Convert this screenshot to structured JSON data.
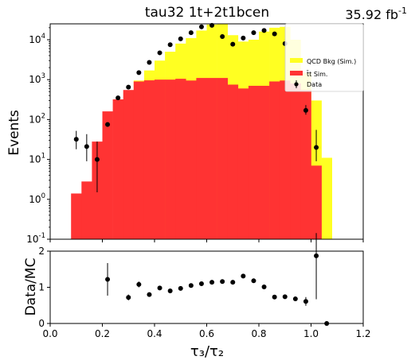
{
  "chart_data": [
    {
      "type": "bar",
      "title": "tau32  1t+2t1bcen",
      "luminosity": "35.92 fb",
      "luminosity_exponent": "-1",
      "ylabel": "Events",
      "yscale": "log",
      "ylim": [
        0.1,
        25000
      ],
      "xlim": [
        0.0,
        1.2
      ],
      "yticks": [
        "10",
        "10",
        "10",
        "10",
        "10",
        "10"
      ],
      "ytick_exponents": [
        "-1",
        "0",
        "1",
        "2",
        "3",
        "4"
      ],
      "ytick_values": [
        0.1,
        1,
        10,
        100,
        1000,
        10000
      ],
      "bin_edges": [
        0.0,
        0.04,
        0.08,
        0.12,
        0.16,
        0.2,
        0.24,
        0.28,
        0.32,
        0.36,
        0.4,
        0.44,
        0.48,
        0.52,
        0.56,
        0.6,
        0.64,
        0.68,
        0.72,
        0.76,
        0.8,
        0.84,
        0.88,
        0.92,
        0.96,
        1.0,
        1.04,
        1.08,
        1.12,
        1.16,
        1.2
      ],
      "legend_position": "upper right",
      "legend": [
        {
          "label": "QCD Bkg (Sim.)",
          "color": "#ffff22",
          "kind": "patch"
        },
        {
          "label": "t̄t Sim.",
          "color": "#ff3333",
          "kind": "patch"
        },
        {
          "label": "Data",
          "color": "#000000",
          "kind": "errorbar"
        }
      ],
      "series": [
        {
          "name": "t̄t Sim.",
          "color": "#ff3333",
          "values": [
            0,
            0,
            1.4,
            2.8,
            28,
            160,
            320,
            550,
            900,
            960,
            1000,
            1000,
            1050,
            950,
            1100,
            1100,
            1100,
            750,
            600,
            700,
            700,
            900,
            950,
            800,
            550,
            7,
            0,
            0,
            0,
            0
          ]
        },
        {
          "name": "QCD Bkg (Sim.)",
          "color": "#ffff22",
          "stack_totals": [
            0,
            0,
            0,
            0,
            0,
            0,
            0,
            0,
            950,
            1700,
            3000,
            5000,
            8000,
            11000,
            17000,
            24000,
            25000,
            13000,
            9000,
            10000,
            16000,
            20000,
            21000,
            10000,
            1500,
            300,
            11,
            0,
            0,
            0
          ]
        },
        {
          "name": "Data",
          "color": "#000000",
          "x": [
            0.1,
            0.14,
            0.18,
            0.22,
            0.26,
            0.3,
            0.34,
            0.38,
            0.42,
            0.46,
            0.5,
            0.54,
            0.58,
            0.62,
            0.66,
            0.7,
            0.74,
            0.78,
            0.82,
            0.86,
            0.9,
            0.98,
            1.02
          ],
          "y": [
            32,
            21,
            10,
            75,
            350,
            650,
            1500,
            2700,
            4700,
            7500,
            10500,
            15000,
            21000,
            23000,
            12000,
            7700,
            11000,
            15000,
            17000,
            14000,
            8000,
            170,
            20
          ],
          "yerr_low": [
            14,
            12,
            8.5,
            0,
            0,
            0,
            0,
            0,
            0,
            0,
            0,
            0,
            0,
            0,
            0,
            0,
            0,
            0,
            0,
            0,
            0,
            38,
            11
          ],
          "yerr_high": [
            20,
            22,
            18,
            0,
            0,
            0,
            0,
            0,
            0,
            0,
            0,
            0,
            0,
            0,
            0,
            0,
            0,
            0,
            0,
            0,
            0,
            60,
            35
          ]
        }
      ]
    },
    {
      "type": "scatter",
      "xlabel": "τ₃/τ₂",
      "ylabel": "Data/MC",
      "xlim": [
        0.0,
        1.2
      ],
      "ylim": [
        0,
        2
      ],
      "xticks": [
        "0.0",
        "0.2",
        "0.4",
        "0.6",
        "0.8",
        "1.0",
        "1.2"
      ],
      "xtick_values": [
        0.0,
        0.2,
        0.4,
        0.6,
        0.8,
        1.0,
        1.2
      ],
      "yticks": [
        "0",
        "1",
        "2"
      ],
      "ytick_values": [
        0,
        1,
        2
      ],
      "series": [
        {
          "name": "Data/MC",
          "color": "#000000",
          "x": [
            0.22,
            0.3,
            0.34,
            0.38,
            0.42,
            0.46,
            0.5,
            0.54,
            0.58,
            0.62,
            0.66,
            0.7,
            0.74,
            0.78,
            0.82,
            0.86,
            0.9,
            0.94,
            0.98,
            1.02,
            1.06
          ],
          "y": [
            1.22,
            0.72,
            1.08,
            0.8,
            0.98,
            0.9,
            0.97,
            1.05,
            1.1,
            1.14,
            1.16,
            1.14,
            1.31,
            1.18,
            1.01,
            0.73,
            0.74,
            0.68,
            0.61,
            1.87,
            0.0
          ],
          "yerr": [
            0.45,
            0.08,
            0.08,
            0.04,
            0.03,
            0.03,
            0.02,
            0.02,
            0.02,
            0.02,
            0.02,
            0.02,
            0.03,
            0.03,
            0.03,
            0.03,
            0.03,
            0.05,
            0.12,
            1.2,
            0.0
          ]
        }
      ]
    }
  ]
}
